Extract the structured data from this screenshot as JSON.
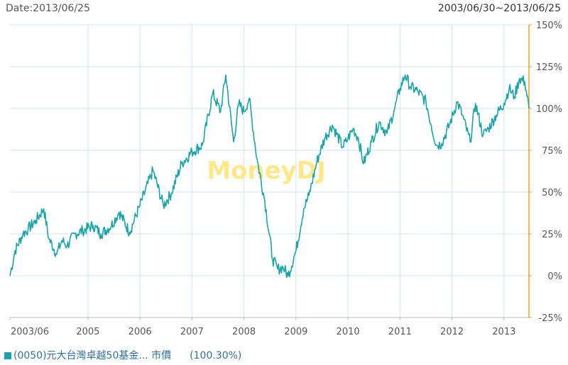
{
  "header": {
    "date_label": "Date:2013/06/25",
    "range_label": "2003/06/30~2013/06/25"
  },
  "chart_data": {
    "type": "line",
    "title": "",
    "watermark": "MoneyDJ",
    "xlabel": "",
    "ylabel": "",
    "x_ticks": [
      "2003/06",
      "2005",
      "2006",
      "2007",
      "2008",
      "2009",
      "2010",
      "2011",
      "2012",
      "2013"
    ],
    "x_tick_positions": [
      2003.5,
      2005,
      2006,
      2007,
      2008,
      2009,
      2010,
      2011,
      2012,
      2013
    ],
    "xlim": [
      2003.5,
      2013.48
    ],
    "y_ticks": [
      "150%",
      "125%",
      "100%",
      "75%",
      "50%",
      "25%",
      "0%",
      "-25%"
    ],
    "y_tick_values": [
      150,
      125,
      100,
      75,
      50,
      25,
      0,
      -25
    ],
    "ylim": [
      -25,
      150
    ],
    "y_axis_position": "right",
    "grid": true,
    "colors": {
      "line": "#1aa3a8",
      "grid": "#cfe6f2",
      "axis": "#f0a020",
      "watermark": "#ffe88a"
    },
    "legend_position": "bottom-left",
    "series": [
      {
        "name": "(0050)元大台灣卓越50基金... 市價",
        "value_label": "(100.30%)",
        "x": [
          2003.5,
          2003.6,
          2003.75,
          2003.85,
          2004.0,
          2004.15,
          2004.25,
          2004.4,
          2004.5,
          2004.6,
          2004.75,
          2004.9,
          2005.1,
          2005.25,
          2005.45,
          2005.6,
          2005.8,
          2006.0,
          2006.25,
          2006.45,
          2006.6,
          2006.8,
          2007.0,
          2007.2,
          2007.4,
          2007.55,
          2007.65,
          2007.8,
          2007.9,
          2008.0,
          2008.1,
          2008.25,
          2008.4,
          2008.55,
          2008.65,
          2008.75,
          2008.85,
          2009.0,
          2009.15,
          2009.25,
          2009.4,
          2009.55,
          2009.7,
          2009.9,
          2010.0,
          2010.1,
          2010.2,
          2010.3,
          2010.45,
          2010.6,
          2010.75,
          2010.9,
          2011.0,
          2011.1,
          2011.2,
          2011.35,
          2011.5,
          2011.6,
          2011.7,
          2011.8,
          2011.95,
          2012.1,
          2012.2,
          2012.35,
          2012.45,
          2012.6,
          2012.7,
          2012.85,
          2013.0,
          2013.1,
          2013.2,
          2013.3,
          2013.4,
          2013.48
        ],
        "y": [
          0,
          15,
          25,
          28,
          33,
          40,
          22,
          13,
          21,
          18,
          25,
          27,
          30,
          25,
          30,
          38,
          26,
          42,
          63,
          42,
          49,
          67,
          74,
          78,
          109,
          98,
          120,
          80,
          103,
          98,
          106,
          70,
          45,
          10,
          4,
          5,
          0,
          15,
          40,
          48,
          68,
          82,
          90,
          77,
          82,
          88,
          82,
          67,
          80,
          92,
          85,
          100,
          112,
          120,
          113,
          110,
          104,
          90,
          78,
          79,
          90,
          104,
          96,
          80,
          103,
          84,
          88,
          96,
          103,
          112,
          107,
          118,
          116,
          100
        ]
      }
    ]
  }
}
